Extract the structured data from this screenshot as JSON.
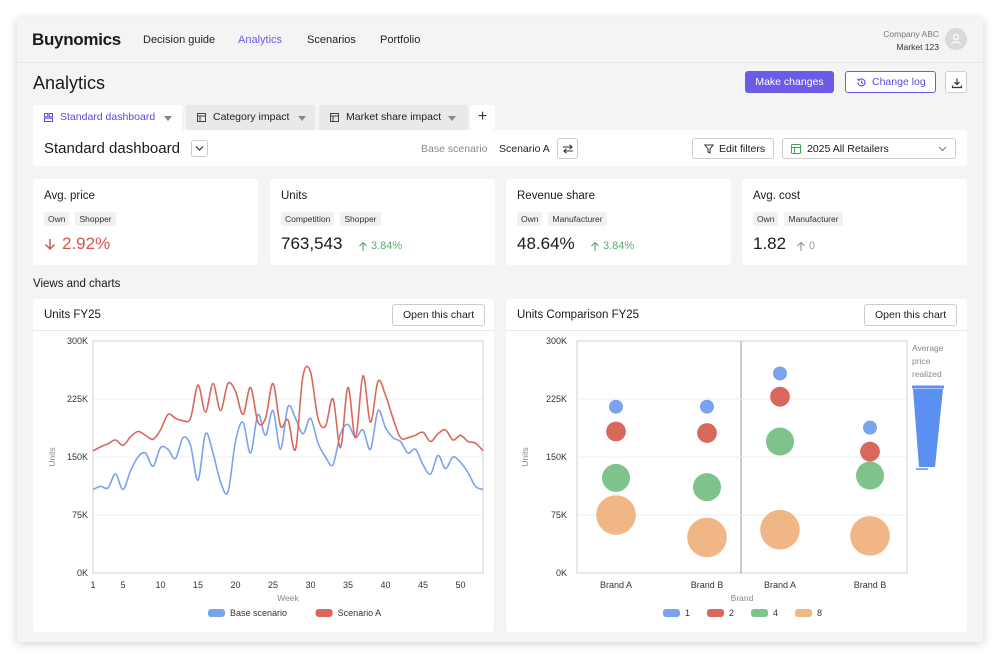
{
  "nav": {
    "logo": "Buynomics",
    "links": [
      "Decision guide",
      "Analytics",
      "Scenarios",
      "Portfolio"
    ],
    "active": "Analytics",
    "company": "Company ABC",
    "market": "Market 123"
  },
  "header": {
    "title": "Analytics",
    "make_changes": "Make changes",
    "change_log": "Change log"
  },
  "tabs": [
    {
      "label": "Standard dashboard"
    },
    {
      "label": "Category impact"
    },
    {
      "label": "Market share impact"
    }
  ],
  "tab_add": "+",
  "dashboard": {
    "title": "Standard dashboard",
    "base_label": "Base scenario",
    "scenario_label": "Scenario A",
    "edit_filters": "Edit filters",
    "retailer": "2025 All Retailers"
  },
  "kpis": [
    {
      "title": "Avg. price",
      "tags": [
        "Own",
        "Shopper"
      ],
      "value": "2.92%",
      "change": ""
    },
    {
      "title": "Units",
      "tags": [
        "Competition",
        "Shopper"
      ],
      "value": "763,543",
      "change": "3.84%"
    },
    {
      "title": "Revenue share",
      "tags": [
        "Own",
        "Manufacturer"
      ],
      "value": "48.64%",
      "change": "3.84%"
    },
    {
      "title": "Avg. cost",
      "tags": [
        "Own",
        "Manufacturer"
      ],
      "value": "1.82",
      "change": "0"
    }
  ],
  "section_title": "Views and charts",
  "open_chart": "Open this chart",
  "colors": {
    "accent": "#6b5ce7",
    "negative": "#d9534f",
    "positive": "#5aad6e",
    "blue": "#7aa3ee",
    "red": "#d9685c",
    "green": "#7dc38b",
    "orange": "#f0b685"
  },
  "chart_data": [
    {
      "type": "line",
      "title": "Units FY25",
      "xlabel": "Week",
      "ylabel": "Units",
      "ylim": [
        0,
        300000
      ],
      "yticks": [
        "0K",
        "75K",
        "150K",
        "225K",
        "300K"
      ],
      "xticks": [
        "1",
        "5",
        "10",
        "15",
        "20",
        "25",
        "30",
        "35",
        "40",
        "45",
        "50"
      ],
      "legend_position": "bottom",
      "x": [
        1,
        2,
        3,
        4,
        5,
        6,
        7,
        8,
        9,
        10,
        11,
        12,
        13,
        14,
        15,
        16,
        17,
        18,
        19,
        20,
        21,
        22,
        23,
        24,
        25,
        26,
        27,
        28,
        29,
        30,
        31,
        32,
        33,
        34,
        35,
        36,
        37,
        38,
        39,
        40,
        41,
        42,
        43,
        44,
        45,
        46,
        47,
        48,
        49,
        50,
        51,
        52,
        53
      ],
      "series": [
        {
          "name": "Base scenario",
          "values": [
            108000,
            112000,
            110000,
            128000,
            108000,
            132000,
            150000,
            155000,
            138000,
            162000,
            160000,
            148000,
            175000,
            165000,
            120000,
            180000,
            155000,
            118000,
            105000,
            170000,
            195000,
            155000,
            205000,
            178000,
            210000,
            160000,
            215000,
            200000,
            180000,
            200000,
            168000,
            150000,
            140000,
            180000,
            192000,
            175000,
            185000,
            160000,
            210000,
            188000,
            175000,
            170000,
            155000,
            160000,
            140000,
            128000,
            152000,
            135000,
            150000,
            143000,
            130000,
            112000,
            108000
          ]
        },
        {
          "name": "Scenario A",
          "values": [
            158000,
            163000,
            167000,
            172000,
            165000,
            176000,
            183000,
            178000,
            173000,
            185000,
            205000,
            200000,
            197000,
            200000,
            243000,
            208000,
            245000,
            210000,
            245000,
            235000,
            205000,
            240000,
            195000,
            200000,
            245000,
            190000,
            198000,
            160000,
            255000,
            260000,
            200000,
            190000,
            225000,
            162000,
            240000,
            175000,
            255000,
            195000,
            248000,
            230000,
            200000,
            175000,
            175000,
            178000,
            182000,
            170000,
            180000,
            185000,
            172000,
            178000,
            170000,
            168000,
            158000
          ]
        }
      ]
    },
    {
      "type": "scatter",
      "title": "Units Comparison FY25",
      "xlabel": "Brand",
      "ylabel": "Units",
      "ylim": [
        0,
        300000
      ],
      "yticks": [
        "0K",
        "75K",
        "150K",
        "225K",
        "300K"
      ],
      "categories": [
        "Brand A",
        "Brand B",
        "Brand A",
        "Brand B"
      ],
      "side_legend": "Average price realized",
      "legend_position": "bottom",
      "series": [
        {
          "name": "1",
          "values": [
            215000,
            215000,
            258000,
            188000
          ]
        },
        {
          "name": "2",
          "values": [
            183000,
            181000,
            228000,
            157000
          ]
        },
        {
          "name": "4",
          "values": [
            123000,
            111000,
            170000,
            126000
          ]
        },
        {
          "name": "8",
          "values": [
            75000,
            46000,
            56000,
            48000
          ]
        }
      ]
    }
  ]
}
